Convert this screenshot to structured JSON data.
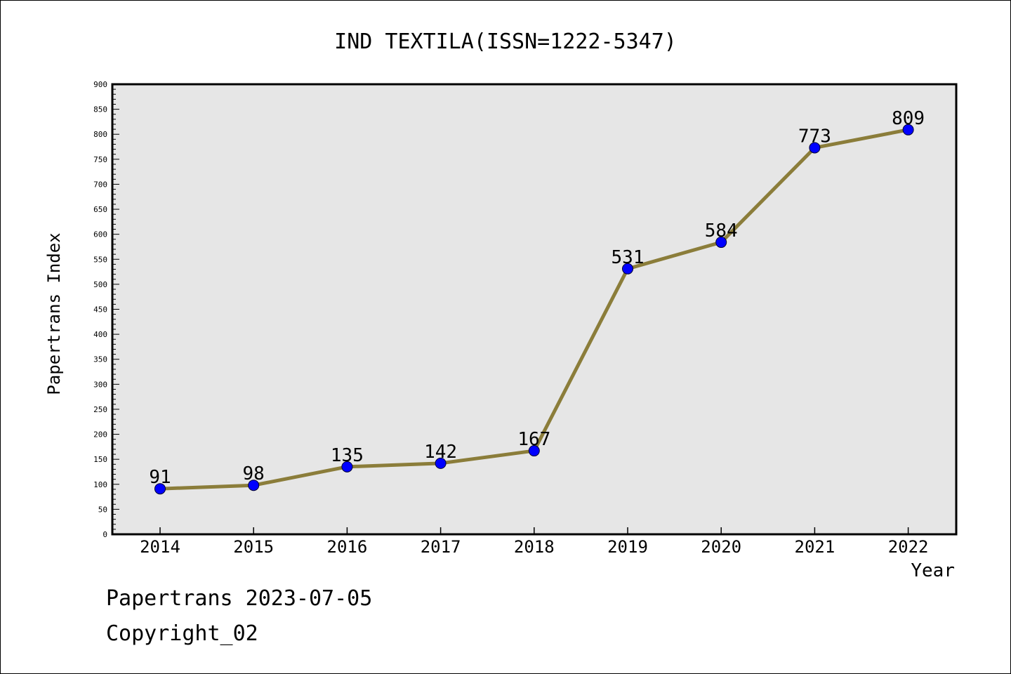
{
  "chart_data": {
    "type": "line",
    "title": "IND TEXTILA(ISSN=1222-5347)",
    "xlabel": "Year",
    "ylabel": "Papertrans Index",
    "x": [
      "2014",
      "2015",
      "2016",
      "2017",
      "2018",
      "2019",
      "2020",
      "2021",
      "2022"
    ],
    "series": [
      {
        "values": [
          91,
          98,
          135,
          142,
          167,
          531,
          584,
          773,
          809
        ]
      }
    ],
    "data_labels": [
      "91",
      "98",
      "135",
      "142",
      "167",
      "531",
      "584",
      "773",
      "809"
    ],
    "ylim": [
      0,
      900
    ],
    "yticks": [
      "0",
      "50",
      "100",
      "150",
      "200",
      "250",
      "300",
      "350",
      "400",
      "450",
      "500",
      "550",
      "600",
      "650",
      "700",
      "750",
      "800",
      "850",
      "900"
    ],
    "grid": false,
    "colors": {
      "line": "#8B7D3A",
      "marker": "#0000FF",
      "plot_background": "#E6E6E6"
    }
  },
  "footer": {
    "line1": "Papertrans 2023-07-05",
    "line2": "Copyright_02"
  }
}
